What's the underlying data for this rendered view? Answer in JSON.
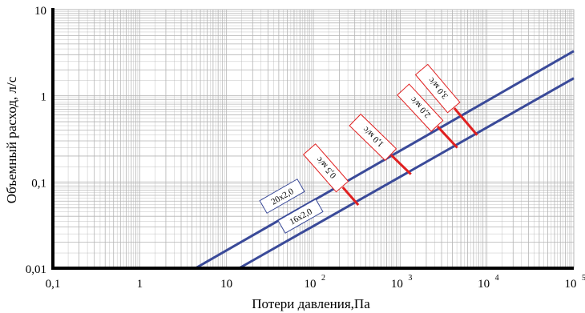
{
  "chart_data": {
    "type": "line",
    "xlabel": "Потери давления,Па",
    "ylabel": "Объемный расход, л/с",
    "x_scale": "log",
    "y_scale": "log",
    "xlim": [
      0.1,
      100000
    ],
    "ylim": [
      0.01,
      10
    ],
    "grid": true,
    "x_ticks": [
      {
        "value": 0.1,
        "label": "0,1"
      },
      {
        "value": 1,
        "label": "1"
      },
      {
        "value": 10,
        "label": "10"
      },
      {
        "value": 100,
        "label": "10",
        "exp": "2"
      },
      {
        "value": 1000,
        "label": "10",
        "exp": "3"
      },
      {
        "value": 10000,
        "label": "10",
        "exp": "4"
      },
      {
        "value": 100000,
        "label": "10",
        "exp": "5"
      }
    ],
    "y_ticks": [
      {
        "value": 0.01,
        "label": "0,01"
      },
      {
        "value": 0.1,
        "label": "0,1"
      },
      {
        "value": 1,
        "label": "1"
      },
      {
        "value": 10,
        "label": "10"
      }
    ],
    "series": [
      {
        "name": "20x2,0",
        "color": "#3a4a99",
        "x": [
          4.4,
          100000
        ],
        "y": [
          0.01,
          3.3
        ]
      },
      {
        "name": "16x2,0",
        "color": "#3a4a99",
        "x": [
          14,
          100000
        ],
        "y": [
          0.01,
          1.6
        ]
      }
    ],
    "velocity_lines": [
      {
        "label": "0,5 м/с",
        "x": [
          218,
          330
        ],
        "y": [
          0.087,
          0.054
        ]
      },
      {
        "label": "1,0 м/с",
        "x": [
          790,
          1330
        ],
        "y": [
          0.205,
          0.123
        ]
      },
      {
        "label": "2,0 м/с",
        "x": [
          2700,
          4550
        ],
        "y": [
          0.44,
          0.25
        ]
      },
      {
        "label": "3,0 м/с",
        "x": [
          4200,
          7700
        ],
        "y": [
          0.72,
          0.35
        ]
      }
    ],
    "colors": {
      "series": "#3a4a99",
      "velocity": "#e02020",
      "grid": "#b4b4b4",
      "axis": "#000000"
    }
  }
}
